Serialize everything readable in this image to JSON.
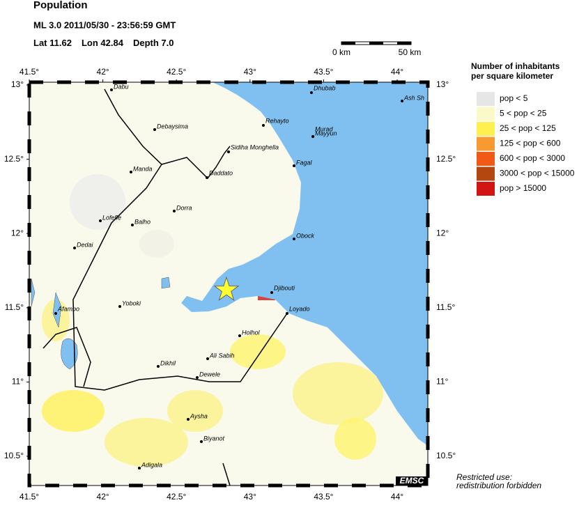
{
  "header": {
    "title": "Population",
    "event": "ML 3.0  2011/05/30 - 23:56:59 GMT",
    "lat_label": "Lat",
    "lat": 11.62,
    "lon_label": "Lon",
    "lon": 42.84,
    "depth_label": "Depth",
    "depth": "7.0"
  },
  "scale_bar": {
    "start": "0 km",
    "end": "50 km"
  },
  "map": {
    "lon_ticks": [
      {
        "value": 41.5,
        "label": "41.5°"
      },
      {
        "value": 42,
        "label": "42°"
      },
      {
        "value": 42.5,
        "label": "42.5°"
      },
      {
        "value": 43,
        "label": "43°"
      },
      {
        "value": 43.5,
        "label": "43.5°"
      },
      {
        "value": 44,
        "label": "44°"
      }
    ],
    "lat_ticks": [
      {
        "value": 13,
        "label": "13°"
      },
      {
        "value": 12.5,
        "label": "12.5°"
      },
      {
        "value": 12,
        "label": "12°"
      },
      {
        "value": 11.5,
        "label": "11.5°"
      },
      {
        "value": 11,
        "label": "11°"
      },
      {
        "value": 10.5,
        "label": "10.5°"
      }
    ],
    "places": [
      "Dabu",
      "Debaysima",
      "Manda",
      "Lofefle",
      "Balho",
      "Dorra",
      "Dedai",
      "Rehayto",
      "Sidiha Monghella",
      "Daddato",
      "Murad",
      "Mayyun",
      "Dhubab",
      "Fagal",
      "Obock",
      "Djibouti",
      "Loyado",
      "Yoboki",
      "Afambo",
      "Holhol",
      "Ali Sabih",
      "Dikhil",
      "Dewele",
      "Aysha",
      "Biyanot",
      "Adigala",
      "Ash Sh"
    ],
    "logo": "EMSC"
  },
  "legend": {
    "title": [
      "Number of inhabitants",
      "per square kilometer"
    ],
    "entries": [
      {
        "label": "pop < 5",
        "color": "#e6e6e6"
      },
      {
        "label": "5 < pop < 25",
        "color": "#fafac8"
      },
      {
        "label": "25 < pop < 125",
        "color": "#fff050"
      },
      {
        "label": "125 < pop < 600",
        "color": "#f89a32"
      },
      {
        "label": "600 < pop < 3000",
        "color": "#f05a14"
      },
      {
        "label": "3000 < pop < 15000",
        "color": "#b4460f"
      },
      {
        "label": "pop > 15000",
        "color": "#d21414"
      }
    ]
  },
  "footer": [
    "Restricted use:",
    "redistribution forbidden"
  ]
}
